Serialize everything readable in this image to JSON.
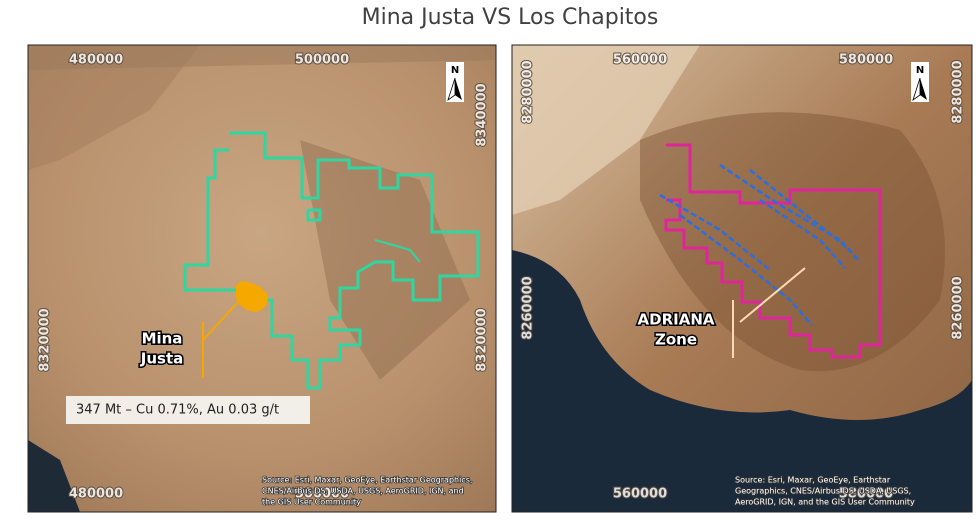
{
  "title": "Mina Justa VS Los Chapitos",
  "maps": [
    {
      "north": "N",
      "top_labels": [
        "480000",
        "500000"
      ],
      "bottom_labels": [
        "480000",
        "500000"
      ],
      "left_labels": [
        "8320000"
      ],
      "right_labels": [
        "8340000",
        "8320000"
      ],
      "place_label": [
        "Mina",
        "Justa"
      ],
      "info_box": "347 Mt – Cu 0.71%, Au 0.03 g/t",
      "attribution": [
        "Source: Esri, Maxar, GeoEye, Earthstar Geographics,",
        "CNES/Airbus DS, USDA, USGS, AeroGRID, IGN, and",
        "the GIS User Community"
      ]
    },
    {
      "north": "N",
      "top_labels": [
        "560000",
        "580000"
      ],
      "bottom_labels": [
        "560000",
        "580000"
      ],
      "left_labels": [
        "8280000",
        "8260000"
      ],
      "right_labels": [
        "8280000",
        "8260000"
      ],
      "place_label": [
        "ADRIANA",
        "Zone"
      ],
      "attribution": [
        "Source: Esri, Maxar, GeoEye, Earthstar",
        "Geographics, CNES/Airbus DS, USDA, USGS,",
        "AeroGRID, IGN, and the GIS User Community"
      ]
    }
  ]
}
